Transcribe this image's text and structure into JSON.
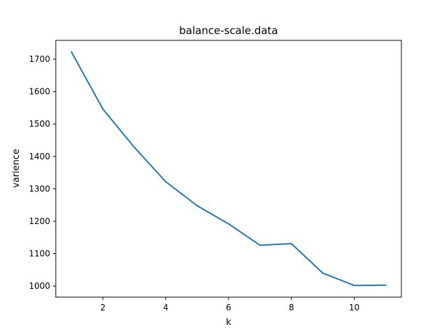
{
  "chart_data": {
    "type": "line",
    "title": "balance-scale.data",
    "xlabel": "k",
    "ylabel": "varience",
    "x": [
      1,
      2,
      3,
      4,
      5,
      6,
      7,
      8,
      9,
      10,
      11
    ],
    "series": [
      {
        "values": [
          1722,
          1546,
          1428,
          1322,
          1248,
          1192,
          1126,
          1131,
          1040,
          1002,
          1003
        ],
        "color": "#1f77b4"
      }
    ],
    "xticks": [
      2,
      4,
      6,
      8,
      10
    ],
    "yticks": [
      1000,
      1100,
      1200,
      1300,
      1400,
      1500,
      1600,
      1700
    ],
    "xlim": [
      0.5,
      11.5
    ],
    "ylim": [
      966,
      1758
    ],
    "grid": false,
    "legend": false
  }
}
